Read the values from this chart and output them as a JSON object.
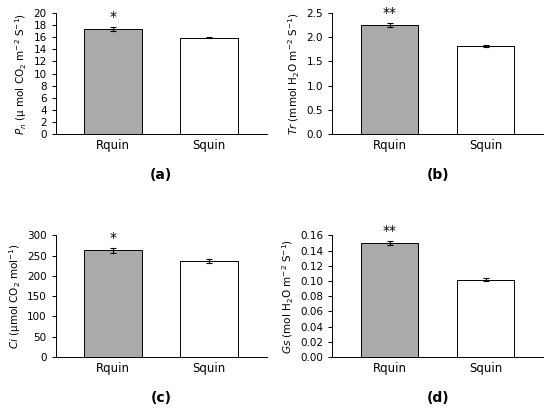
{
  "panels": [
    {
      "label": "(a)",
      "ylabel": "$P_n$ (μ mol CO$_2$ m$^{-2}$ S$^{-1}$)",
      "categories": [
        "Rquin",
        "Squin"
      ],
      "values": [
        17.3,
        15.9
      ],
      "errors": [
        0.35,
        0.08
      ],
      "significance": "*",
      "ylim": [
        0,
        20
      ],
      "yticks": [
        0,
        2,
        4,
        6,
        8,
        10,
        12,
        14,
        16,
        18,
        20
      ],
      "bar_colors": [
        "#aaaaaa",
        "#ffffff"
      ],
      "sig_bar_index": 0
    },
    {
      "label": "(b)",
      "ylabel": "$Tr$ (mmol H$_2$O m$^{-2}$ S$^{-1}$)",
      "categories": [
        "Rquin",
        "Squin"
      ],
      "values": [
        2.25,
        1.82
      ],
      "errors": [
        0.05,
        0.015
      ],
      "significance": "**",
      "ylim": [
        0.0,
        2.5
      ],
      "yticks": [
        0.0,
        0.5,
        1.0,
        1.5,
        2.0,
        2.5
      ],
      "bar_colors": [
        "#aaaaaa",
        "#ffffff"
      ],
      "sig_bar_index": 0
    },
    {
      "label": "(c)",
      "ylabel": "$Ci$ (μmol CO$_2$ mol$^{-1}$)",
      "categories": [
        "Rquin",
        "Squin"
      ],
      "values": [
        263,
        237
      ],
      "errors": [
        7,
        4
      ],
      "significance": "*",
      "ylim": [
        0,
        300
      ],
      "yticks": [
        0,
        50,
        100,
        150,
        200,
        250,
        300
      ],
      "bar_colors": [
        "#aaaaaa",
        "#ffffff"
      ],
      "sig_bar_index": 0
    },
    {
      "label": "(d)",
      "ylabel": "$Gs$ (mol H$_2$O m$^{-2}$ S$^{-1}$)",
      "categories": [
        "Rquin",
        "Squin"
      ],
      "values": [
        0.15,
        0.102
      ],
      "errors": [
        0.003,
        0.002
      ],
      "significance": "**",
      "ylim": [
        0.0,
        0.16
      ],
      "yticks": [
        0.0,
        0.02,
        0.04,
        0.06,
        0.08,
        0.1,
        0.12,
        0.14,
        0.16
      ],
      "bar_colors": [
        "#aaaaaa",
        "#ffffff"
      ],
      "sig_bar_index": 0
    }
  ],
  "bar_width": 0.3,
  "bar_positions": [
    0.55,
    1.05
  ],
  "xlim": [
    0.25,
    1.35
  ],
  "tick_fontsize": 7.5,
  "label_fontsize": 7.5,
  "panel_label_fontsize": 10,
  "sig_fontsize": 10,
  "xticklabel_fontsize": 8.5,
  "edge_color": "#000000"
}
